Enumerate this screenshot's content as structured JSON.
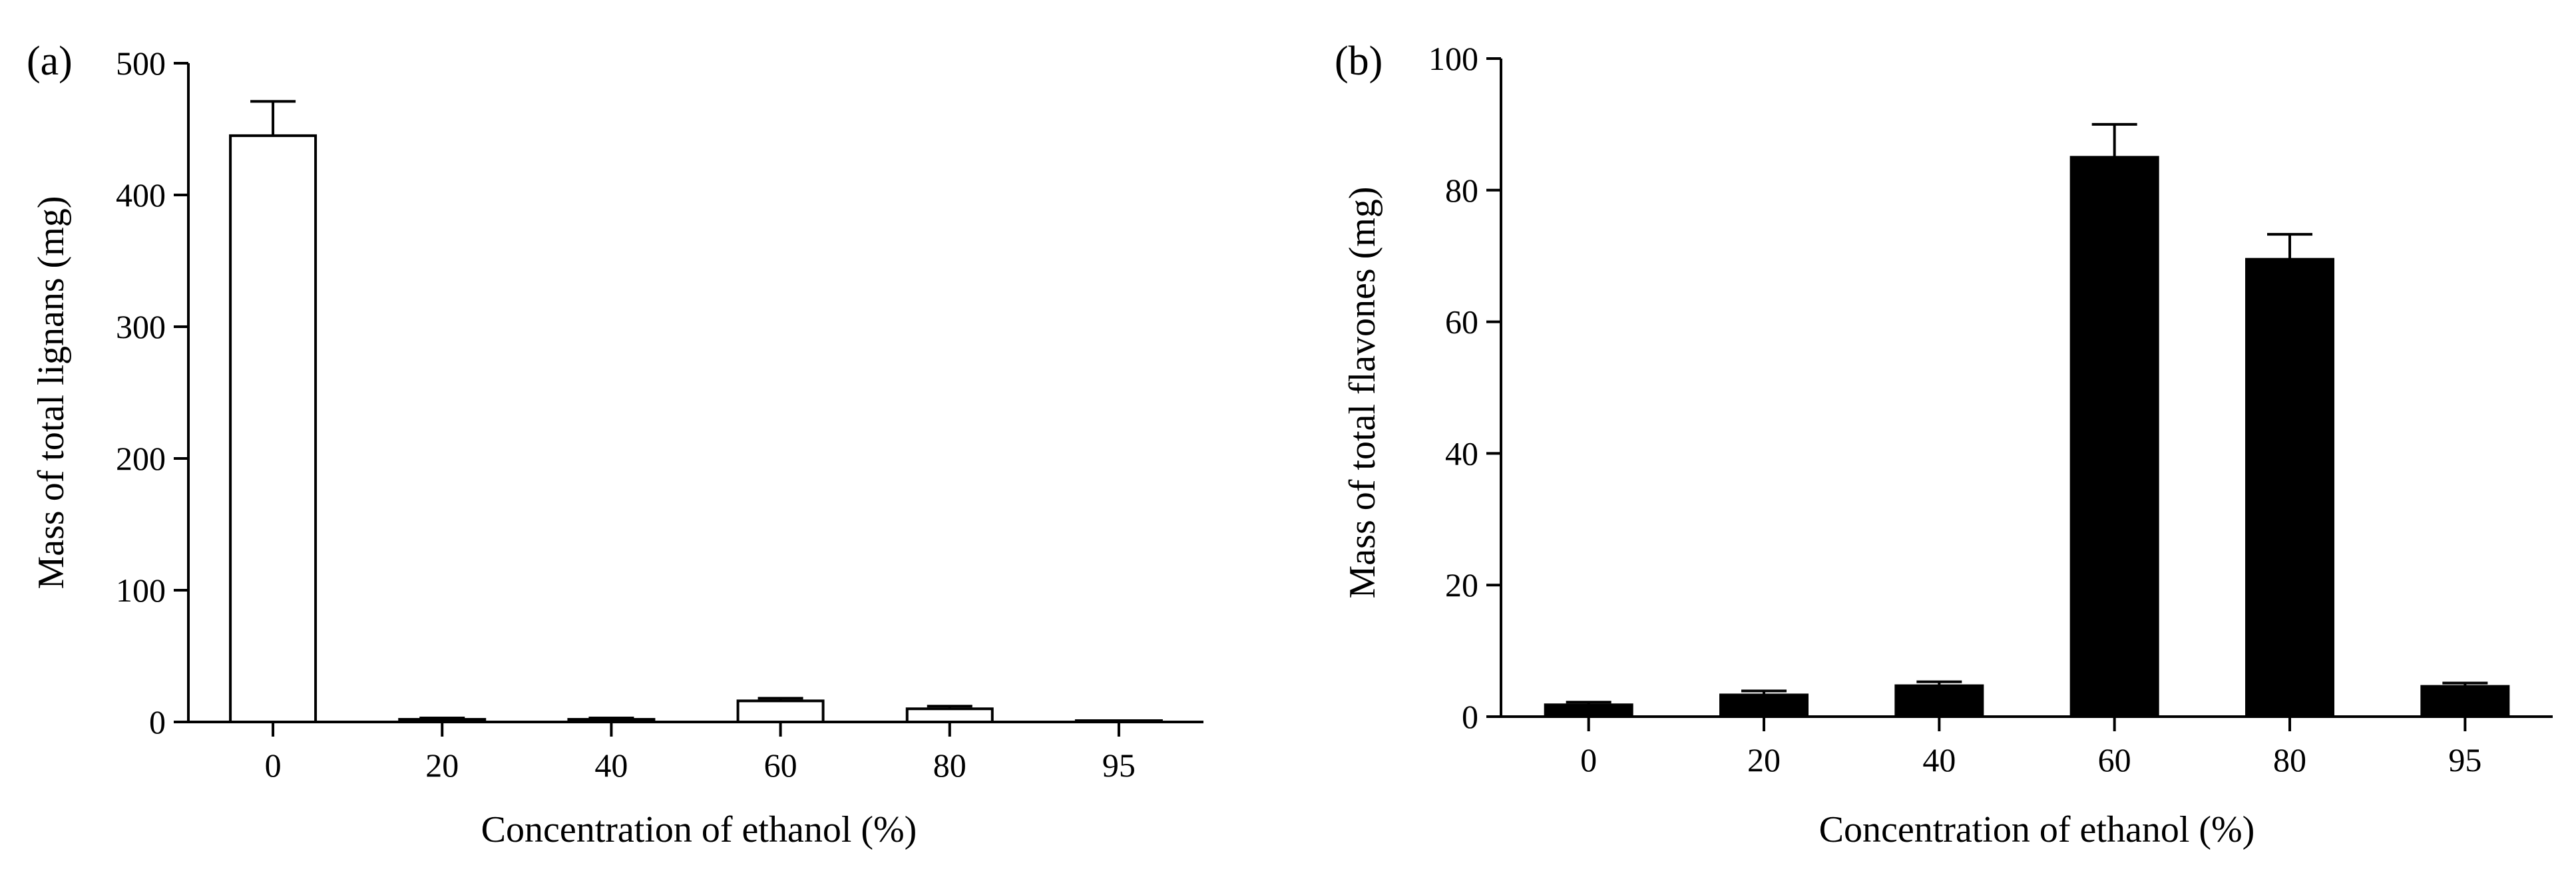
{
  "chart_data": [
    {
      "type": "bar",
      "panel_label": "(a)",
      "title": "",
      "xlabel": "Concentration of ethanol (%)",
      "ylabel": "Mass of total lignans (mg)",
      "categories": [
        "0",
        "20",
        "40",
        "60",
        "80",
        "95"
      ],
      "ylim": [
        0,
        500
      ],
      "yticks": [
        "0",
        "100",
        "200",
        "300",
        "400",
        "500"
      ],
      "series": [
        {
          "values": [
            445,
            2,
            2,
            16,
            10,
            0.5
          ],
          "errors": [
            26,
            1,
            1,
            2,
            2,
            0.5
          ],
          "fill": "#ffffff"
        }
      ],
      "grid": false,
      "legend": "none"
    },
    {
      "type": "bar",
      "panel_label": "(b)",
      "title": "",
      "xlabel": "Concentration of ethanol (%)",
      "ylabel": "Mass of total flavones (mg)",
      "categories": [
        "0",
        "20",
        "40",
        "60",
        "80",
        "95"
      ],
      "ylim": [
        0,
        100
      ],
      "yticks": [
        "0",
        "20",
        "40",
        "60",
        "80",
        "100"
      ],
      "series": [
        {
          "values": [
            1.8,
            3.3,
            4.7,
            85,
            69.5,
            4.6
          ],
          "errors": [
            0.4,
            0.6,
            0.6,
            5,
            3.8,
            0.5
          ],
          "fill": "#000000"
        }
      ],
      "grid": false,
      "legend": "none"
    }
  ]
}
